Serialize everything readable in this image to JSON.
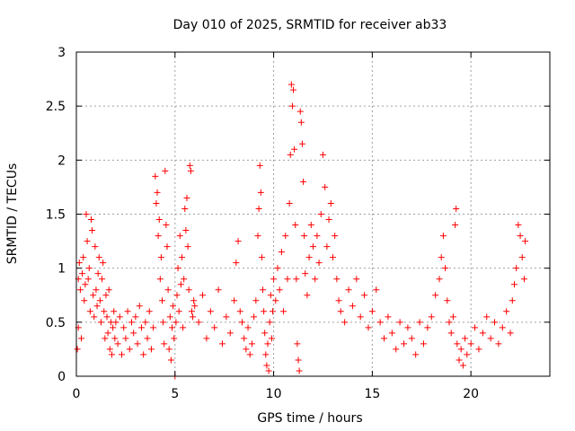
{
  "chart_data": {
    "type": "scatter",
    "title": "Day 010 of 2025, SRMTID for receiver ab33",
    "xlabel": "GPS time / hours",
    "ylabel": "SRMTID / TECUs",
    "xlim": [
      0,
      24
    ],
    "ylim": [
      0,
      3
    ],
    "xticks": [
      0,
      5,
      10,
      15,
      20
    ],
    "yticks": [
      0,
      0.5,
      1,
      1.5,
      2,
      2.5,
      3
    ],
    "xtick_labels": [
      "0",
      "5",
      "10",
      "15",
      "20"
    ],
    "ytick_labels": [
      "0",
      "0.5",
      "1",
      "1.5",
      "2",
      "2.5",
      "3"
    ],
    "grid": true,
    "marker": "+",
    "color": "#ff0000",
    "series": [
      {
        "name": "SRMTID",
        "points": [
          [
            0.05,
            0.25
          ],
          [
            0.1,
            0.45
          ],
          [
            0.1,
            0.9
          ],
          [
            0.15,
            1.05
          ],
          [
            0.2,
            0.8
          ],
          [
            0.25,
            0.35
          ],
          [
            0.3,
            0.95
          ],
          [
            0.35,
            1.1
          ],
          [
            0.4,
            0.7
          ],
          [
            0.45,
            0.85
          ],
          [
            0.5,
            1.5
          ],
          [
            0.55,
            1.25
          ],
          [
            0.6,
            0.9
          ],
          [
            0.65,
            1.0
          ],
          [
            0.7,
            0.6
          ],
          [
            0.75,
            1.45
          ],
          [
            0.8,
            1.35
          ],
          [
            0.85,
            0.75
          ],
          [
            0.9,
            0.55
          ],
          [
            0.95,
            1.2
          ],
          [
            1.0,
            0.8
          ],
          [
            1.05,
            0.65
          ],
          [
            1.1,
            0.95
          ],
          [
            1.15,
            1.1
          ],
          [
            1.2,
            0.7
          ],
          [
            1.25,
            0.5
          ],
          [
            1.3,
            0.9
          ],
          [
            1.35,
            1.05
          ],
          [
            1.4,
            0.6
          ],
          [
            1.45,
            0.35
          ],
          [
            1.5,
            0.75
          ],
          [
            1.55,
            0.55
          ],
          [
            1.6,
            0.4
          ],
          [
            1.65,
            0.8
          ],
          [
            1.7,
            0.25
          ],
          [
            1.75,
            0.5
          ],
          [
            1.8,
            0.2
          ],
          [
            1.85,
            0.45
          ],
          [
            1.9,
            0.6
          ],
          [
            1.95,
            0.35
          ],
          [
            2.0,
            0.5
          ],
          [
            2.1,
            0.3
          ],
          [
            2.2,
            0.55
          ],
          [
            2.3,
            0.2
          ],
          [
            2.4,
            0.45
          ],
          [
            2.5,
            0.35
          ],
          [
            2.6,
            0.6
          ],
          [
            2.7,
            0.25
          ],
          [
            2.8,
            0.5
          ],
          [
            2.9,
            0.4
          ],
          [
            3.0,
            0.55
          ],
          [
            3.1,
            0.3
          ],
          [
            3.2,
            0.65
          ],
          [
            3.3,
            0.45
          ],
          [
            3.4,
            0.2
          ],
          [
            3.5,
            0.5
          ],
          [
            3.6,
            0.35
          ],
          [
            3.7,
            0.6
          ],
          [
            3.8,
            0.25
          ],
          [
            3.9,
            0.45
          ],
          [
            4.0,
            1.85
          ],
          [
            4.05,
            1.6
          ],
          [
            4.1,
            1.7
          ],
          [
            4.15,
            1.3
          ],
          [
            4.2,
            1.45
          ],
          [
            4.25,
            0.9
          ],
          [
            4.3,
            1.1
          ],
          [
            4.35,
            0.7
          ],
          [
            4.4,
            0.5
          ],
          [
            4.45,
            0.3
          ],
          [
            4.5,
            1.9
          ],
          [
            4.55,
            1.4
          ],
          [
            4.6,
            1.2
          ],
          [
            4.65,
            0.8
          ],
          [
            4.7,
            0.25
          ],
          [
            4.75,
            0.55
          ],
          [
            4.8,
            0.15
          ],
          [
            4.85,
            0.45
          ],
          [
            4.9,
            0.65
          ],
          [
            4.95,
            0.35
          ],
          [
            5.0,
            0.0
          ],
          [
            5.05,
            0.5
          ],
          [
            5.1,
            0.75
          ],
          [
            5.15,
            1.0
          ],
          [
            5.2,
            0.6
          ],
          [
            5.25,
            1.3
          ],
          [
            5.3,
            0.85
          ],
          [
            5.35,
            1.1
          ],
          [
            5.4,
            0.45
          ],
          [
            5.45,
            0.9
          ],
          [
            5.5,
            1.55
          ],
          [
            5.55,
            1.35
          ],
          [
            5.6,
            1.65
          ],
          [
            5.65,
            1.2
          ],
          [
            5.7,
            0.8
          ],
          [
            5.75,
            1.95
          ],
          [
            5.8,
            1.9
          ],
          [
            5.85,
            0.6
          ],
          [
            5.9,
            0.55
          ],
          [
            5.95,
            0.7
          ],
          [
            6.0,
            0.65
          ],
          [
            6.2,
            0.5
          ],
          [
            6.4,
            0.75
          ],
          [
            6.6,
            0.35
          ],
          [
            6.8,
            0.6
          ],
          [
            7.0,
            0.45
          ],
          [
            7.2,
            0.8
          ],
          [
            7.4,
            0.3
          ],
          [
            7.6,
            0.55
          ],
          [
            7.8,
            0.4
          ],
          [
            8.0,
            0.7
          ],
          [
            8.1,
            1.05
          ],
          [
            8.2,
            1.25
          ],
          [
            8.3,
            0.6
          ],
          [
            8.4,
            0.5
          ],
          [
            8.5,
            0.35
          ],
          [
            8.6,
            0.25
          ],
          [
            8.7,
            0.45
          ],
          [
            8.8,
            0.2
          ],
          [
            8.9,
            0.3
          ],
          [
            9.0,
            0.55
          ],
          [
            9.1,
            0.7
          ],
          [
            9.2,
            1.3
          ],
          [
            9.25,
            1.55
          ],
          [
            9.3,
            1.95
          ],
          [
            9.35,
            1.7
          ],
          [
            9.4,
            1.1
          ],
          [
            9.45,
            0.8
          ],
          [
            9.5,
            0.6
          ],
          [
            9.55,
            0.4
          ],
          [
            9.6,
            0.2
          ],
          [
            9.65,
            0.1
          ],
          [
            9.7,
            0.3
          ],
          [
            9.75,
            0.05
          ],
          [
            9.8,
            0.5
          ],
          [
            9.85,
            0.75
          ],
          [
            9.9,
            0.35
          ],
          [
            9.95,
            0.6
          ],
          [
            10.0,
            0.9
          ],
          [
            10.1,
            0.7
          ],
          [
            10.2,
            1.0
          ],
          [
            10.3,
            0.8
          ],
          [
            10.4,
            1.15
          ],
          [
            10.5,
            0.6
          ],
          [
            10.6,
            1.3
          ],
          [
            10.7,
            0.9
          ],
          [
            10.8,
            1.6
          ],
          [
            10.85,
            2.05
          ],
          [
            10.9,
            2.7
          ],
          [
            10.95,
            2.5
          ],
          [
            11.0,
            2.65
          ],
          [
            11.05,
            2.1
          ],
          [
            11.1,
            1.4
          ],
          [
            11.15,
            0.9
          ],
          [
            11.2,
            0.3
          ],
          [
            11.25,
            0.15
          ],
          [
            11.3,
            0.05
          ],
          [
            11.35,
            2.45
          ],
          [
            11.4,
            2.35
          ],
          [
            11.45,
            2.15
          ],
          [
            11.5,
            1.8
          ],
          [
            11.55,
            1.3
          ],
          [
            11.6,
            0.95
          ],
          [
            11.7,
            0.75
          ],
          [
            11.8,
            1.1
          ],
          [
            11.9,
            1.4
          ],
          [
            12.0,
            1.2
          ],
          [
            12.1,
            0.9
          ],
          [
            12.2,
            1.3
          ],
          [
            12.3,
            1.05
          ],
          [
            12.4,
            1.5
          ],
          [
            12.5,
            2.05
          ],
          [
            12.6,
            1.75
          ],
          [
            12.7,
            1.2
          ],
          [
            12.8,
            1.45
          ],
          [
            12.9,
            1.6
          ],
          [
            13.0,
            1.1
          ],
          [
            13.1,
            1.3
          ],
          [
            13.2,
            0.9
          ],
          [
            13.3,
            0.7
          ],
          [
            13.4,
            0.6
          ],
          [
            13.6,
            0.5
          ],
          [
            13.8,
            0.8
          ],
          [
            14.0,
            0.65
          ],
          [
            14.2,
            0.9
          ],
          [
            14.4,
            0.55
          ],
          [
            14.6,
            0.75
          ],
          [
            14.8,
            0.45
          ],
          [
            15.0,
            0.6
          ],
          [
            15.2,
            0.8
          ],
          [
            15.4,
            0.5
          ],
          [
            15.6,
            0.35
          ],
          [
            15.8,
            0.55
          ],
          [
            16.0,
            0.4
          ],
          [
            16.2,
            0.25
          ],
          [
            16.4,
            0.5
          ],
          [
            16.6,
            0.3
          ],
          [
            16.8,
            0.45
          ],
          [
            17.0,
            0.35
          ],
          [
            17.2,
            0.2
          ],
          [
            17.4,
            0.5
          ],
          [
            17.6,
            0.3
          ],
          [
            17.8,
            0.45
          ],
          [
            18.0,
            0.55
          ],
          [
            18.2,
            0.75
          ],
          [
            18.4,
            0.9
          ],
          [
            18.5,
            1.1
          ],
          [
            18.6,
            1.3
          ],
          [
            18.7,
            1.0
          ],
          [
            18.8,
            0.7
          ],
          [
            18.9,
            0.5
          ],
          [
            19.0,
            0.4
          ],
          [
            19.1,
            0.55
          ],
          [
            19.2,
            1.4
          ],
          [
            19.25,
            1.55
          ],
          [
            19.3,
            0.3
          ],
          [
            19.4,
            0.15
          ],
          [
            19.5,
            0.25
          ],
          [
            19.6,
            0.1
          ],
          [
            19.7,
            0.35
          ],
          [
            19.8,
            0.2
          ],
          [
            20.0,
            0.3
          ],
          [
            20.2,
            0.45
          ],
          [
            20.4,
            0.25
          ],
          [
            20.6,
            0.4
          ],
          [
            20.8,
            0.55
          ],
          [
            21.0,
            0.35
          ],
          [
            21.2,
            0.5
          ],
          [
            21.4,
            0.3
          ],
          [
            21.6,
            0.45
          ],
          [
            21.8,
            0.6
          ],
          [
            22.0,
            0.4
          ],
          [
            22.1,
            0.7
          ],
          [
            22.2,
            0.85
          ],
          [
            22.3,
            1.0
          ],
          [
            22.4,
            1.4
          ],
          [
            22.5,
            1.3
          ],
          [
            22.6,
            1.1
          ],
          [
            22.7,
            0.9
          ],
          [
            22.75,
            1.25
          ]
        ]
      }
    ]
  }
}
